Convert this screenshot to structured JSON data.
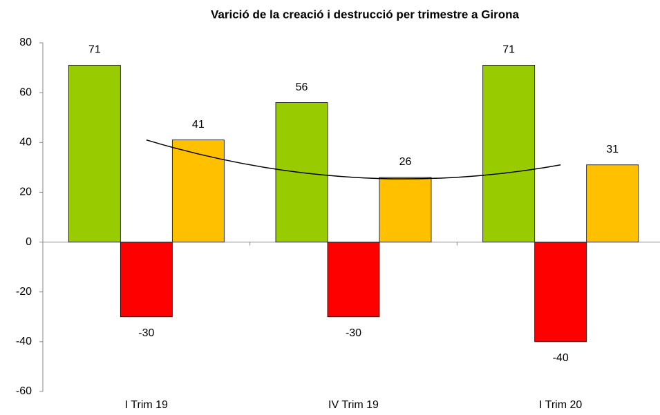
{
  "chart_data": {
    "type": "bar",
    "title": "Varició de la creació i destrucció per trimestre a Girona",
    "categories": [
      "I Trim 19",
      "IV Trim 19",
      "I Trim 20"
    ],
    "series": [
      {
        "color": "#99cc00",
        "values": [
          71,
          56,
          71
        ]
      },
      {
        "color": "#ff0000",
        "values": [
          -30,
          -30,
          -40
        ]
      },
      {
        "color": "#ffc000",
        "values": [
          41,
          26,
          31
        ]
      }
    ],
    "ylim": [
      -60,
      80
    ],
    "yticks": [
      -60,
      -40,
      -20,
      0,
      20,
      40,
      60,
      80
    ],
    "grid": false
  }
}
